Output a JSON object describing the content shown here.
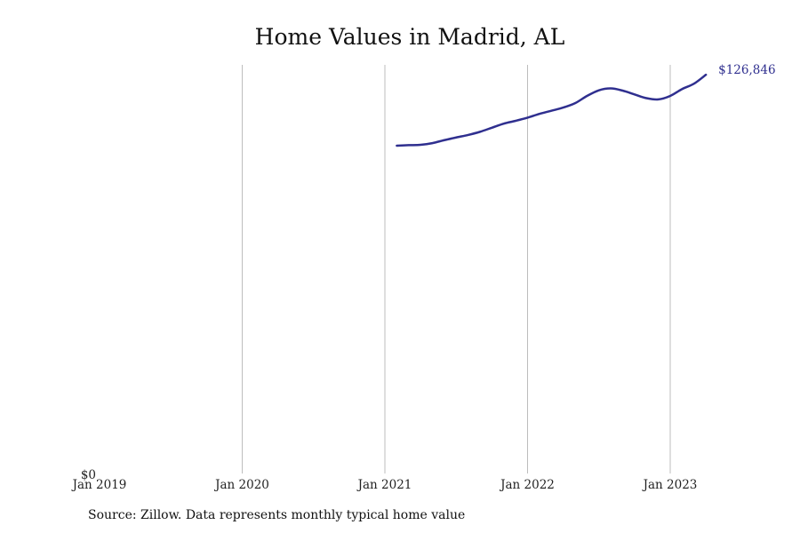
{
  "chart_data": {
    "type": "line",
    "title": "Home Values in Madrid, AL",
    "source": "Source: Zillow. Data represents monthly typical home value",
    "line_color": "#2f2f8f",
    "grid_color": "#bdbdbd",
    "x_ticks": [
      "Jan 2019",
      "Jan 2020",
      "Jan 2021",
      "Jan 2022",
      "Jan 2023"
    ],
    "y_ticks": [
      "$0"
    ],
    "ylim": [
      0,
      130000
    ],
    "xlim": [
      "2019-01",
      "2023-09"
    ],
    "grid": "vertical",
    "end_label": "$126,846",
    "series": [
      {
        "x": [
          "2021-02",
          "2021-03",
          "2021-04",
          "2021-05",
          "2021-06",
          "2021-07",
          "2021-08",
          "2021-09",
          "2021-10",
          "2021-11",
          "2021-12",
          "2022-01",
          "2022-02",
          "2022-03",
          "2022-04",
          "2022-05",
          "2022-06",
          "2022-07",
          "2022-08",
          "2022-09",
          "2022-10",
          "2022-11",
          "2022-12",
          "2023-01",
          "2023-02",
          "2023-03",
          "2023-04"
        ],
        "values": [
          104300,
          104450,
          104550,
          105100,
          106050,
          106900,
          107700,
          108700,
          110000,
          111300,
          112200,
          113200,
          114400,
          115400,
          116400,
          117800,
          120100,
          121900,
          122500,
          121800,
          120600,
          119400,
          119000,
          120100,
          122300,
          124000,
          126846
        ]
      }
    ]
  }
}
